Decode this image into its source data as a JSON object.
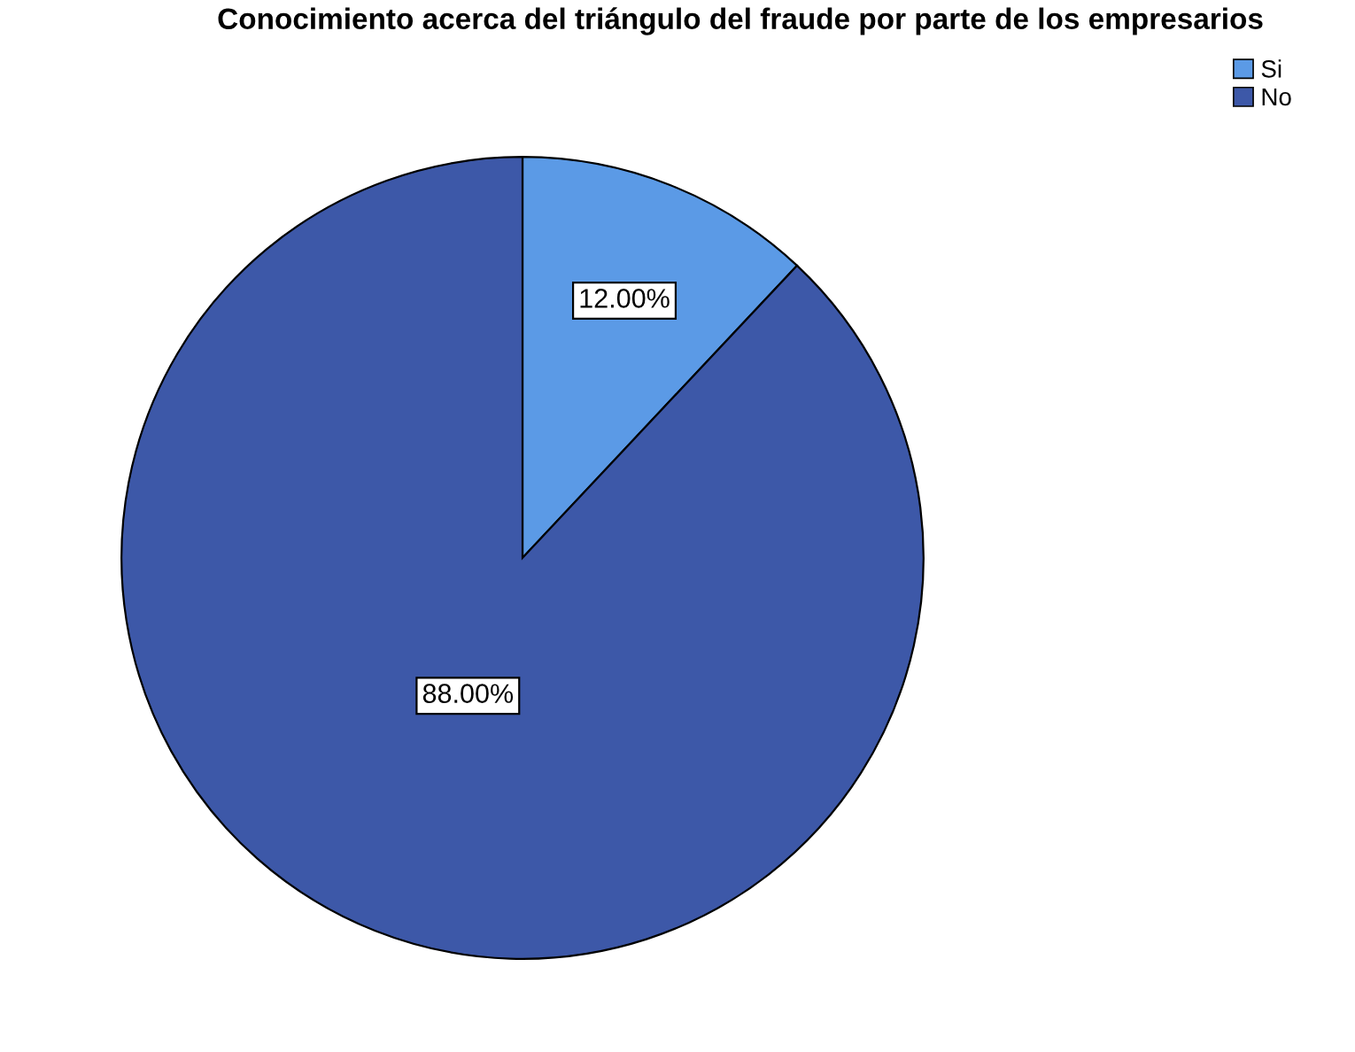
{
  "chart_data": {
    "type": "pie",
    "title": "Conocimiento acerca del triángulo del fraude por parte de los empresarios",
    "categories": [
      "Si",
      "No"
    ],
    "values": [
      12,
      88
    ],
    "colors": [
      "#5b9ae6",
      "#3d58a8"
    ],
    "value_labels": [
      "12.00%",
      "88.00%"
    ],
    "legend": "top right"
  }
}
